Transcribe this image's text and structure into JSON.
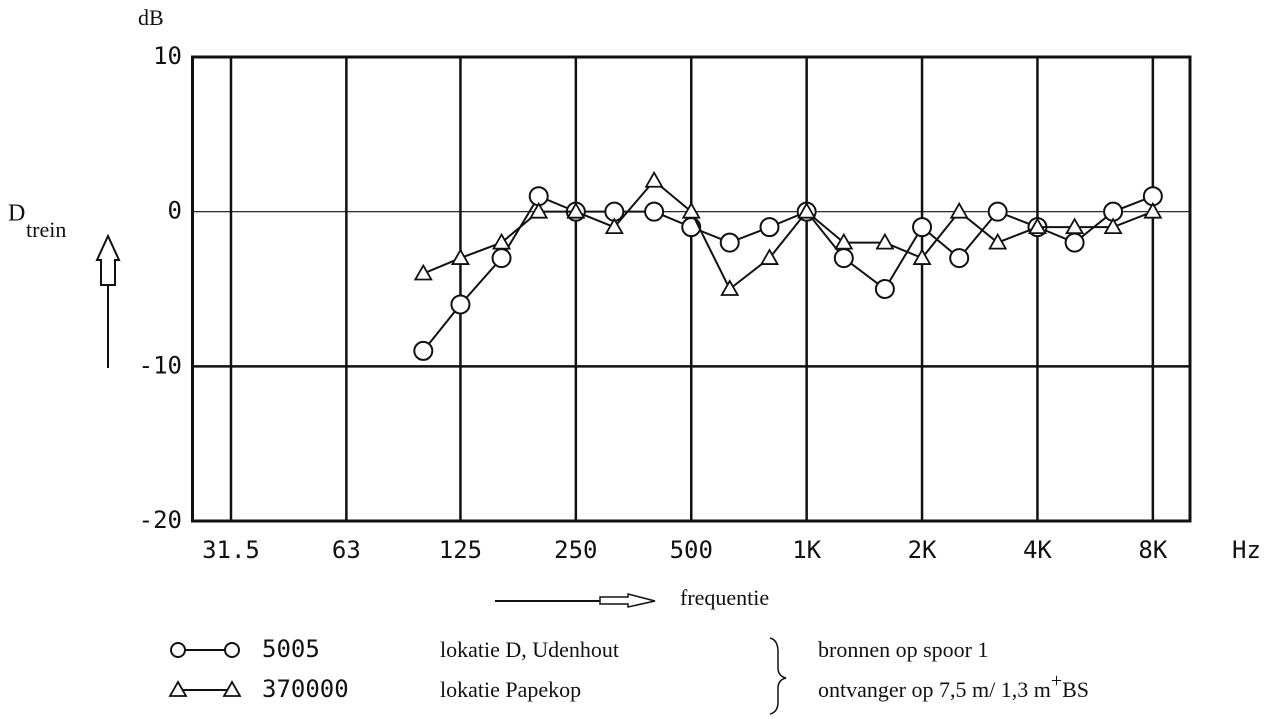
{
  "chart_data": {
    "type": "line",
    "y_unit": "dB",
    "y_label": "D",
    "y_label_subscript": "trein",
    "x_unit": "Hz",
    "x_label": "frequentie",
    "x_log": true,
    "xlim": [
      25,
      10000
    ],
    "xticks": [
      31.5,
      63,
      125,
      250,
      500,
      {
        "value": 1000,
        "label": "1K"
      },
      {
        "value": 2000,
        "label": "2K"
      },
      {
        "value": 4000,
        "label": "4K"
      },
      {
        "value": 8000,
        "label": "8K"
      }
    ],
    "ylim": [
      -20,
      10
    ],
    "yticks": [
      10,
      0,
      -10,
      -20
    ],
    "grid": true,
    "x": [
      100,
      125,
      160,
      200,
      250,
      315,
      400,
      500,
      630,
      800,
      1000,
      1250,
      1600,
      2000,
      2500,
      3150,
      4000,
      5000,
      6300,
      8000
    ],
    "series": [
      {
        "name": "5005",
        "location": "lokatie D, Udenhout",
        "marker": "circle",
        "color": "#111111",
        "values": [
          -9,
          -6,
          -3,
          1,
          0,
          0,
          0,
          -1,
          -2,
          -1,
          0,
          -3,
          -5,
          -1,
          -3,
          0,
          -1,
          -2,
          0,
          1
        ]
      },
      {
        "name": "370000",
        "location": "lokatie Papekop",
        "marker": "triangle",
        "color": "#111111",
        "values": [
          -4,
          -3,
          -2,
          0,
          0,
          -1,
          2,
          0,
          -5,
          -3,
          0,
          -2,
          -2,
          -3,
          0,
          -2,
          -1,
          -1,
          -1,
          0
        ]
      }
    ],
    "notes": [
      {
        "text": "bronnen op spoor 1"
      },
      {
        "text": "ontvanger op 7,5 m/ 1,3 m",
        "sup": "+",
        "after": "BS"
      }
    ]
  }
}
